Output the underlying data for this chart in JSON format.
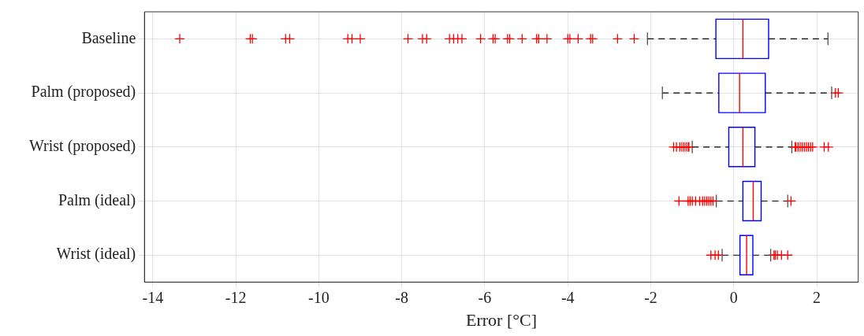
{
  "chart_data": {
    "type": "box",
    "orientation": "horizontal",
    "xlabel": "Error [°C]",
    "categories": [
      "Baseline",
      "Palm (proposed)",
      "Wrist (proposed)",
      "Palm (ideal)",
      "Wrist (ideal)"
    ],
    "xlim": [
      -14.2,
      3
    ],
    "xticks": [
      -14,
      -12,
      -10,
      -8,
      -6,
      -4,
      -2,
      0,
      2
    ],
    "grid": true,
    "marker": "cross",
    "line_style": "dashed",
    "series": [
      {
        "color": "#0000ff",
        "boxes": [
          {
            "low": -2.08,
            "q1": -0.43,
            "median": 0.22,
            "q3": 0.84,
            "high": 2.27,
            "outliers": [
              -13.35,
              -11.65,
              -11.6,
              -10.8,
              -10.7,
              -9.3,
              -9.2,
              -9.0,
              -7.85,
              -7.5,
              -7.4,
              -6.85,
              -6.75,
              -6.65,
              -6.55,
              -6.1,
              -5.8,
              -5.75,
              -5.45,
              -5.4,
              -5.1,
              -4.75,
              -4.7,
              -4.5,
              -4.0,
              -3.95,
              -3.75,
              -3.45,
              -3.4,
              -2.8,
              -2.4
            ]
          },
          {
            "low": -1.72,
            "q1": -0.36,
            "median": 0.14,
            "q3": 0.76,
            "high": 2.36,
            "outliers": [
              2.45,
              2.52
            ]
          },
          {
            "low": -1.0,
            "q1": -0.12,
            "median": 0.22,
            "q3": 0.51,
            "high": 1.4,
            "outliers": [
              -1.45,
              -1.38,
              -1.3,
              -1.25,
              -1.2,
              -1.15,
              -1.1,
              -1.08,
              1.48,
              1.5,
              1.55,
              1.6,
              1.65,
              1.7,
              1.75,
              1.8,
              1.85,
              1.9,
              2.18,
              2.28
            ]
          },
          {
            "low": -0.42,
            "q1": 0.22,
            "median": 0.47,
            "q3": 0.66,
            "high": 1.3,
            "outliers": [
              -1.32,
              -1.1,
              -1.05,
              -1.0,
              -0.92,
              -0.82,
              -0.75,
              -0.7,
              -0.65,
              -0.6,
              -0.55,
              -0.5,
              1.38
            ]
          },
          {
            "low": -0.28,
            "q1": 0.15,
            "median": 0.31,
            "q3": 0.46,
            "high": 0.89,
            "outliers": [
              -0.55,
              -0.45,
              -0.37,
              0.97,
              1.0,
              1.05,
              1.15,
              1.3
            ]
          }
        ]
      }
    ]
  }
}
